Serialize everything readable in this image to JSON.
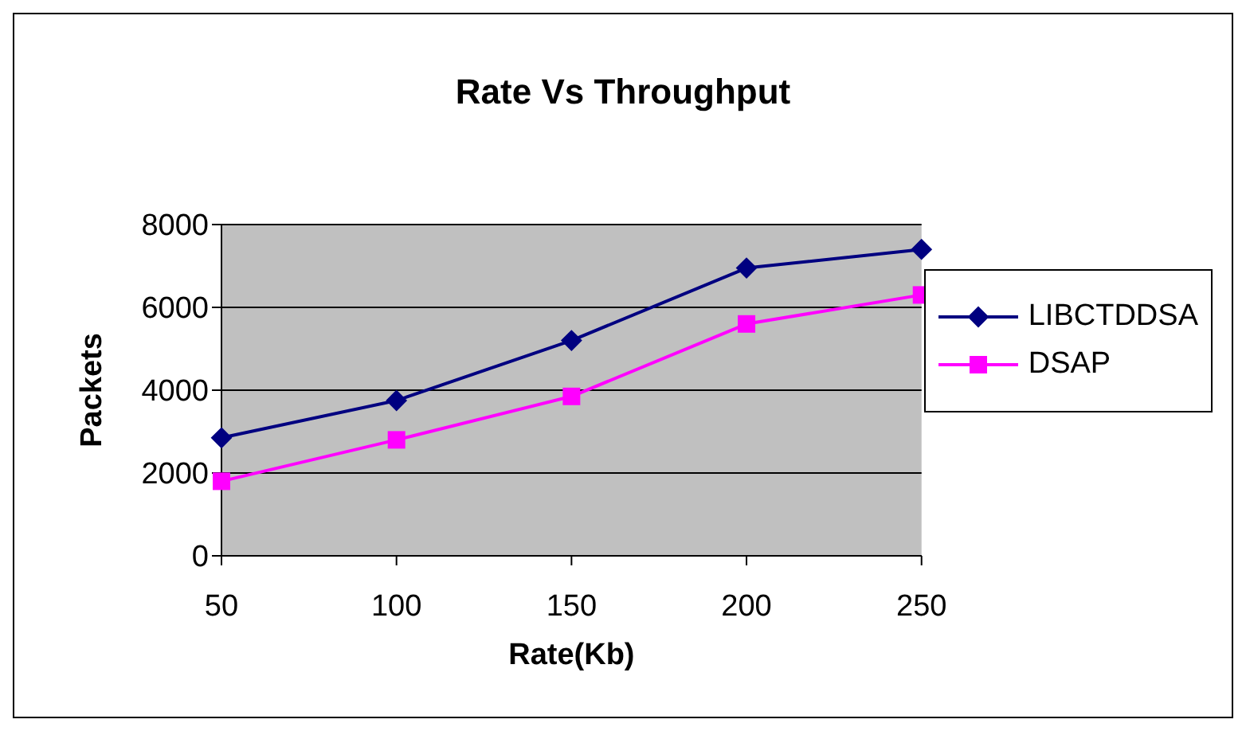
{
  "chart_data": {
    "type": "line",
    "title": "Rate Vs Throughput",
    "xlabel": "Rate(Kb)",
    "ylabel": "Packets",
    "categories": [
      "50",
      "100",
      "150",
      "200",
      "250"
    ],
    "series": [
      {
        "name": "LIBCTDDSA",
        "color": "#000080",
        "marker": "diamond",
        "values": [
          2850,
          3750,
          5200,
          6950,
          7400
        ]
      },
      {
        "name": "DSAP",
        "color": "#ff00ff",
        "marker": "square",
        "values": [
          1800,
          2800,
          3850,
          5600,
          6300
        ]
      }
    ],
    "ylim": [
      0,
      8000
    ],
    "yticks": [
      0,
      2000,
      4000,
      6000,
      8000
    ],
    "grid": "y",
    "legend": "right"
  }
}
